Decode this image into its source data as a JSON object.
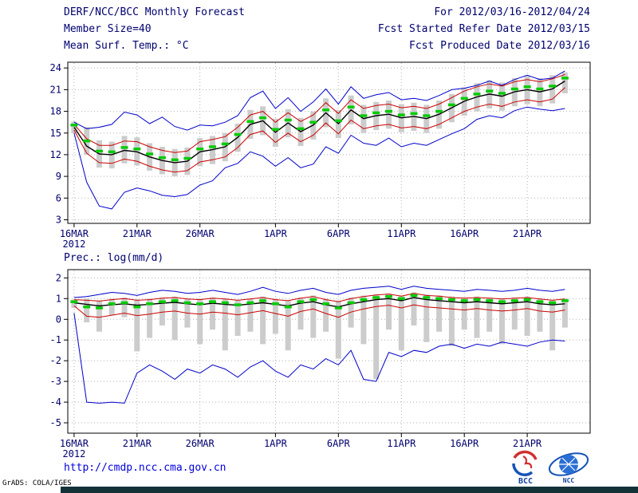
{
  "header": {
    "title": "DERF/NCC/BCC Monthly Forecast",
    "member_size": "Member Size=40",
    "period": "For 2012/03/16-2012/04/24",
    "refer_date": "Fcst Started Refer Date 2012/03/15",
    "produced_date": "Fcst Produced Date 2012/03/16"
  },
  "footer": {
    "url": "http://cmdp.ncc.cma.gov.cn",
    "grads_credit": "GrADS: COLA/IGES",
    "logos": [
      {
        "label": "BCC"
      },
      {
        "label": "NCC"
      }
    ]
  },
  "colors": {
    "header_text": "#000070",
    "axis_text": "#000070",
    "url_text": "#0000dd",
    "frame": "#000000",
    "grid": "#b0b0b0",
    "gray_bar": "#cccccc",
    "green_dash": "#00cc00",
    "black_line": "#000000",
    "red_line": "#cc0000",
    "blue_line": "#0000cc"
  },
  "chart_data": [
    {
      "type": "line",
      "label": "Mean Surf. Temp.: °C",
      "ylim": [
        2.5,
        24.8
      ],
      "yticks": [
        3,
        6,
        9,
        12,
        15,
        18,
        21,
        24
      ],
      "n_days": 40,
      "xticks": [
        {
          "day": 0,
          "label": "16MAR",
          "sub": "2012"
        },
        {
          "day": 5,
          "label": "21MAR"
        },
        {
          "day": 10,
          "label": "26MAR"
        },
        {
          "day": 16,
          "label": "1APR"
        },
        {
          "day": 21,
          "label": "6APR"
        },
        {
          "day": 26,
          "label": "11APR"
        },
        {
          "day": 31,
          "label": "16APR"
        },
        {
          "day": 36,
          "label": "21APR"
        }
      ],
      "bars": {
        "name": "gray-spread-bars",
        "color": "#cccccc",
        "top": [
          16.6,
          15.8,
          14.0,
          13.8,
          14.6,
          14.4,
          13.6,
          13.1,
          12.8,
          13.0,
          14.3,
          14.6,
          15.0,
          16.3,
          18.2,
          18.7,
          17.0,
          18.3,
          17.1,
          18.0,
          19.8,
          18.2,
          20.2,
          18.9,
          19.3,
          19.5,
          19.0,
          19.2,
          18.9,
          19.5,
          20.4,
          21.3,
          21.9,
          22.3,
          22.0,
          22.6,
          22.9,
          22.6,
          23.0,
          23.4
        ],
        "bottom": [
          15.0,
          12.0,
          10.2,
          10.1,
          10.8,
          10.5,
          9.8,
          9.3,
          9.0,
          9.2,
          10.4,
          10.7,
          11.1,
          12.4,
          14.2,
          14.7,
          13.1,
          14.4,
          13.2,
          14.1,
          15.8,
          14.3,
          16.2,
          15.0,
          15.4,
          15.6,
          15.1,
          15.3,
          15.0,
          15.6,
          16.5,
          17.4,
          18.0,
          18.4,
          18.1,
          18.7,
          19.0,
          18.7,
          19.1,
          20.5
        ]
      },
      "markers": {
        "name": "green-dash-markers",
        "color": "#00cc00",
        "values": [
          16.1,
          13.9,
          12.5,
          12.4,
          13.0,
          12.8,
          12.1,
          11.6,
          11.3,
          11.5,
          12.8,
          13.1,
          13.5,
          14.8,
          16.6,
          17.1,
          15.5,
          16.8,
          15.6,
          16.5,
          18.2,
          16.7,
          18.6,
          17.4,
          17.8,
          18.0,
          17.5,
          17.7,
          17.4,
          18.0,
          18.9,
          19.8,
          20.4,
          20.8,
          20.5,
          21.1,
          21.4,
          21.1,
          21.5,
          22.6
        ]
      },
      "series": [
        {
          "name": "blue-upper-line",
          "color": "#0000cc",
          "width": 1,
          "values": [
            16.5,
            15.6,
            15.8,
            16.2,
            17.9,
            17.5,
            16.3,
            17.2,
            15.9,
            15.4,
            16.1,
            16.0,
            16.5,
            17.4,
            19.9,
            20.8,
            18.4,
            19.9,
            18.0,
            19.3,
            21.1,
            19.0,
            21.4,
            19.8,
            20.3,
            20.6,
            19.6,
            19.8,
            19.5,
            20.2,
            21.0,
            21.2,
            21.6,
            22.2,
            21.6,
            22.4,
            23.0,
            22.4,
            22.6,
            23.6
          ]
        },
        {
          "name": "blue-lower-line",
          "color": "#0000cc",
          "width": 1,
          "values": [
            15.0,
            8.2,
            4.9,
            4.5,
            6.8,
            7.4,
            7.0,
            6.4,
            6.2,
            6.5,
            7.8,
            8.4,
            10.2,
            10.8,
            12.4,
            11.8,
            10.4,
            11.6,
            10.2,
            10.7,
            13.1,
            12.2,
            14.7,
            13.6,
            13.3,
            14.3,
            13.1,
            13.6,
            13.3,
            14.1,
            14.9,
            15.6,
            16.9,
            17.4,
            17.1,
            18.1,
            18.6,
            18.3,
            18.1,
            18.4
          ]
        },
        {
          "name": "red-upper-line",
          "color": "#cc0000",
          "width": 1,
          "values": [
            16.2,
            14.2,
            13.3,
            13.3,
            13.9,
            13.8,
            13.1,
            12.6,
            12.3,
            12.5,
            13.8,
            14.1,
            14.5,
            15.8,
            17.5,
            18.0,
            16.5,
            17.8,
            16.6,
            17.5,
            19.2,
            17.7,
            19.6,
            18.4,
            18.8,
            19.0,
            18.5,
            18.7,
            18.4,
            19.0,
            19.9,
            20.8,
            21.4,
            21.8,
            21.5,
            22.1,
            22.4,
            22.1,
            22.5,
            23.1
          ]
        },
        {
          "name": "red-lower-line",
          "color": "#cc0000",
          "width": 1,
          "values": [
            15.4,
            12.2,
            10.9,
            10.8,
            11.4,
            11.1,
            10.4,
            9.9,
            9.6,
            9.8,
            11.0,
            11.3,
            11.7,
            13.0,
            14.8,
            15.3,
            13.7,
            15.0,
            13.8,
            14.7,
            16.4,
            14.9,
            16.8,
            15.6,
            16.0,
            16.2,
            15.7,
            15.9,
            15.6,
            16.2,
            17.1,
            18.0,
            18.6,
            19.0,
            18.7,
            19.3,
            19.6,
            19.3,
            19.7,
            21.3
          ]
        },
        {
          "name": "black-mean-line",
          "color": "#000000",
          "width": 1.4,
          "values": [
            15.8,
            13.2,
            12.1,
            12.0,
            12.6,
            12.4,
            11.7,
            11.2,
            10.9,
            11.1,
            12.4,
            12.7,
            13.1,
            14.4,
            16.2,
            16.7,
            15.1,
            16.4,
            15.2,
            16.1,
            17.8,
            16.3,
            18.2,
            17.0,
            17.4,
            17.6,
            17.1,
            17.3,
            17.0,
            17.6,
            18.5,
            19.4,
            20.0,
            20.4,
            20.1,
            20.7,
            21.0,
            20.7,
            21.1,
            22.2
          ]
        }
      ]
    },
    {
      "type": "line",
      "label": "Prec.: log(mm/d)",
      "ylim": [
        -5.5,
        2.4
      ],
      "yticks": [
        -5,
        -4,
        -3,
        -2,
        -1,
        0,
        1,
        2
      ],
      "n_days": 40,
      "xticks": [
        {
          "day": 0,
          "label": "16MAR",
          "sub": "2012"
        },
        {
          "day": 5,
          "label": "21MAR"
        },
        {
          "day": 10,
          "label": "26MAR"
        },
        {
          "day": 16,
          "label": "1APR"
        },
        {
          "day": 21,
          "label": "6APR"
        },
        {
          "day": 26,
          "label": "11APR"
        },
        {
          "day": 31,
          "label": "16APR"
        },
        {
          "day": 36,
          "label": "21APR"
        }
      ],
      "bars": {
        "name": "gray-spread-bars",
        "color": "#cccccc",
        "top": [
          0.95,
          1.0,
          0.9,
          1.0,
          1.05,
          0.95,
          1.0,
          1.05,
          1.1,
          1.0,
          1.0,
          1.05,
          1.0,
          0.95,
          1.0,
          1.1,
          1.0,
          0.9,
          1.05,
          1.15,
          1.0,
          0.9,
          1.05,
          1.15,
          1.2,
          1.25,
          1.15,
          1.3,
          1.2,
          1.15,
          1.1,
          1.05,
          1.1,
          1.05,
          1.0,
          1.05,
          1.1,
          1.0,
          0.95,
          1.0
        ],
        "bottom": [
          0.55,
          -0.15,
          -0.6,
          0.2,
          0.1,
          -1.55,
          -0.9,
          -0.3,
          -1.0,
          -0.4,
          -1.2,
          -0.5,
          -1.5,
          -0.8,
          -0.6,
          -1.2,
          -0.7,
          -1.5,
          -0.5,
          -0.9,
          -0.6,
          -1.9,
          -0.4,
          -1.2,
          -2.9,
          -0.5,
          -1.5,
          -0.3,
          -1.1,
          -0.6,
          -1.3,
          -0.5,
          -0.9,
          -0.6,
          -1.2,
          -0.5,
          -0.8,
          -0.6,
          -1.5,
          -0.4
        ]
      },
      "markers": {
        "name": "green-dash-markers",
        "color": "#00cc00",
        "values": [
          0.85,
          0.6,
          0.55,
          0.75,
          0.8,
          0.6,
          0.75,
          0.85,
          0.9,
          0.8,
          0.75,
          0.85,
          0.8,
          0.7,
          0.8,
          0.9,
          0.75,
          0.6,
          0.85,
          0.95,
          0.75,
          0.55,
          0.8,
          0.95,
          1.05,
          1.1,
          1.0,
          1.15,
          1.05,
          1.0,
          0.95,
          0.9,
          0.95,
          0.9,
          0.85,
          0.9,
          0.95,
          0.85,
          0.8,
          0.9
        ]
      },
      "series": [
        {
          "name": "blue-upper-line",
          "color": "#0000cc",
          "width": 1,
          "values": [
            1.05,
            1.1,
            1.2,
            1.3,
            1.25,
            1.15,
            1.3,
            1.4,
            1.35,
            1.25,
            1.3,
            1.4,
            1.3,
            1.2,
            1.35,
            1.55,
            1.35,
            1.25,
            1.4,
            1.5,
            1.3,
            1.2,
            1.4,
            1.5,
            1.55,
            1.6,
            1.45,
            1.6,
            1.5,
            1.45,
            1.4,
            1.35,
            1.45,
            1.4,
            1.35,
            1.4,
            1.5,
            1.4,
            1.35,
            1.45
          ]
        },
        {
          "name": "blue-lower-line",
          "color": "#0000cc",
          "width": 1,
          "values": [
            0.3,
            -4.0,
            -4.05,
            -4.0,
            -4.05,
            -2.6,
            -2.2,
            -2.5,
            -2.9,
            -2.4,
            -2.6,
            -2.2,
            -2.4,
            -2.8,
            -2.3,
            -2.0,
            -2.5,
            -2.8,
            -2.2,
            -2.4,
            -1.9,
            -2.2,
            -1.5,
            -2.9,
            -3.0,
            -1.6,
            -1.8,
            -1.5,
            -1.6,
            -1.3,
            -1.2,
            -1.4,
            -1.2,
            -1.3,
            -1.1,
            -1.2,
            -1.3,
            -1.1,
            -1.0,
            -1.05
          ]
        },
        {
          "name": "red-upper-line",
          "color": "#cc0000",
          "width": 1,
          "values": [
            0.95,
            0.92,
            0.88,
            0.95,
            1.0,
            0.92,
            0.95,
            1.02,
            1.05,
            0.98,
            0.95,
            1.02,
            0.98,
            0.92,
            0.98,
            1.05,
            0.95,
            0.9,
            1.02,
            1.1,
            0.95,
            0.85,
            1.0,
            1.1,
            1.18,
            1.22,
            1.12,
            1.25,
            1.15,
            1.12,
            1.05,
            1.02,
            1.05,
            1.02,
            0.98,
            1.02,
            1.05,
            0.98,
            0.92,
            0.98
          ]
        },
        {
          "name": "red-lower-line",
          "color": "#cc0000",
          "width": 1,
          "values": [
            0.65,
            0.15,
            0.1,
            0.2,
            0.3,
            0.18,
            0.25,
            0.35,
            0.4,
            0.3,
            0.25,
            0.35,
            0.3,
            0.22,
            0.32,
            0.42,
            0.28,
            0.15,
            0.38,
            0.5,
            0.28,
            0.1,
            0.35,
            0.5,
            0.62,
            0.68,
            0.55,
            0.7,
            0.6,
            0.55,
            0.5,
            0.45,
            0.52,
            0.45,
            0.4,
            0.45,
            0.52,
            0.4,
            0.35,
            0.45
          ]
        },
        {
          "name": "black-mean-line",
          "color": "#000000",
          "width": 1.4,
          "values": [
            0.8,
            0.72,
            0.65,
            0.7,
            0.75,
            0.68,
            0.72,
            0.78,
            0.82,
            0.75,
            0.7,
            0.78,
            0.72,
            0.68,
            0.74,
            0.8,
            0.72,
            0.65,
            0.78,
            0.85,
            0.7,
            0.6,
            0.75,
            0.85,
            0.95,
            1.0,
            0.9,
            1.05,
            0.95,
            0.9,
            0.85,
            0.8,
            0.85,
            0.8,
            0.75,
            0.8,
            0.85,
            0.75,
            0.7,
            0.75
          ]
        }
      ]
    }
  ]
}
